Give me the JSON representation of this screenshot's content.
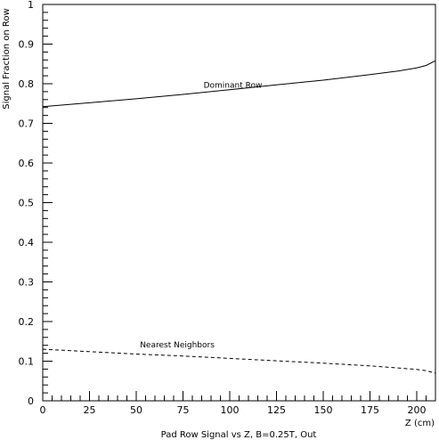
{
  "chart_data": {
    "type": "line",
    "title": "",
    "xlabel": "Pad Row Signal vs Z, B=0.25T, Out",
    "x_unit_label": "Z (cm)",
    "ylabel": "Signal Fraction on Row",
    "xlim": [
      0,
      210
    ],
    "ylim": [
      0,
      1
    ],
    "x_ticks": [
      0,
      25,
      50,
      75,
      100,
      125,
      150,
      175,
      200
    ],
    "x_tick_labels": [
      "0",
      "25",
      "50",
      "75",
      "100",
      "125",
      "150",
      "175",
      "200"
    ],
    "y_ticks": [
      0,
      0.1,
      0.2,
      0.3,
      0.4,
      0.5,
      0.6,
      0.7,
      0.8,
      0.9,
      1
    ],
    "y_tick_labels": [
      "0",
      "0.1",
      "0.2",
      "0.3",
      "0.4",
      "0.5",
      "0.6",
      "0.7",
      "0.8",
      "0.9",
      "1"
    ],
    "grid": false,
    "series": [
      {
        "name": "Dominant Row",
        "style": "solid",
        "color": "#000000",
        "x": [
          0,
          25,
          50,
          75,
          100,
          125,
          150,
          175,
          190,
          200,
          205,
          210
        ],
        "y": [
          0.742,
          0.752,
          0.762,
          0.773,
          0.785,
          0.797,
          0.809,
          0.823,
          0.832,
          0.84,
          0.846,
          0.858
        ]
      },
      {
        "name": "Nearest Neighbors",
        "style": "dashed",
        "color": "#000000",
        "x": [
          0,
          25,
          50,
          75,
          100,
          125,
          150,
          175,
          190,
          200,
          205,
          210
        ],
        "y": [
          0.13,
          0.124,
          0.118,
          0.113,
          0.107,
          0.101,
          0.095,
          0.088,
          0.083,
          0.079,
          0.076,
          0.07
        ]
      }
    ],
    "annotations": [
      {
        "text": "Dominant Row",
        "x": 86,
        "y": 0.79
      },
      {
        "text": "Nearest Neighbors",
        "x": 52,
        "y": 0.135
      }
    ]
  }
}
